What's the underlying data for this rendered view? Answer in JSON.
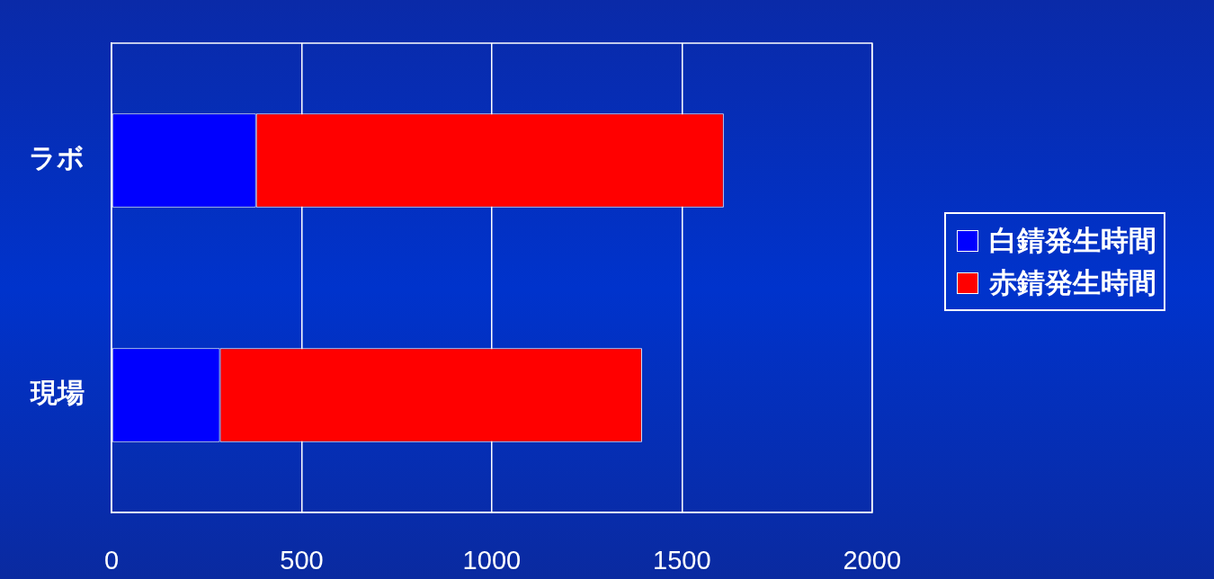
{
  "chart_data": {
    "type": "bar",
    "orientation": "horizontal",
    "stacked": true,
    "categories": [
      "ラボ",
      "現場"
    ],
    "series": [
      {
        "name": "白錆発生時間",
        "color": "#0000ff",
        "values": [
          380,
          285
        ]
      },
      {
        "name": "赤錆発生時間",
        "color": "#ff0000",
        "values": [
          1230,
          1110
        ]
      }
    ],
    "xlim": [
      0,
      2000
    ],
    "xticks": [
      0,
      500,
      1000,
      1500,
      2000
    ],
    "grid": "x",
    "legend": "right"
  }
}
